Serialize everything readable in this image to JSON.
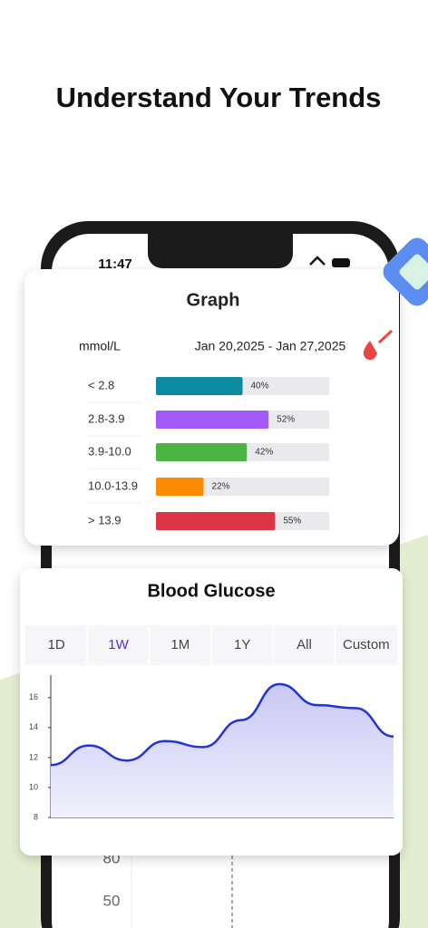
{
  "headline": "Understand Your Trends",
  "phone": {
    "time": "11:47",
    "background_labels": [
      "80",
      "50"
    ]
  },
  "graph_card": {
    "type": "bar",
    "title": "Graph",
    "unit": "mmol/L",
    "date_range": "Jan 20,2025 - Jan 27,2025",
    "categories": [
      "< 2.8",
      "2.8-3.9",
      "3.9-10.0",
      "10.0-13.9",
      "> 13.9"
    ],
    "values": [
      40,
      52,
      42,
      22,
      55
    ],
    "value_labels": [
      "40%",
      "52%",
      "42%",
      "22%",
      "55%"
    ],
    "colors": [
      "#0b8aa0",
      "#a259f7",
      "#4bb543",
      "#ff8c00",
      "#dc3545"
    ],
    "xlim": [
      0,
      80
    ]
  },
  "glucose_card": {
    "type": "line",
    "title": "Blood Glucose",
    "tabs": [
      "1D",
      "1W",
      "1M",
      "1Y",
      "All",
      "Custom"
    ],
    "selected_tab": 1,
    "categories": [
      null,
      null,
      null,
      null,
      null,
      null,
      null,
      null,
      null,
      null
    ],
    "values": [
      11.5,
      12.8,
      11.8,
      13.1,
      12.7,
      14.5,
      16.9,
      15.5,
      15.3,
      13.4
    ],
    "color": "#2334d6",
    "ylim": [
      8,
      17.5
    ],
    "yticks": [
      8,
      10,
      12,
      14,
      16
    ]
  }
}
